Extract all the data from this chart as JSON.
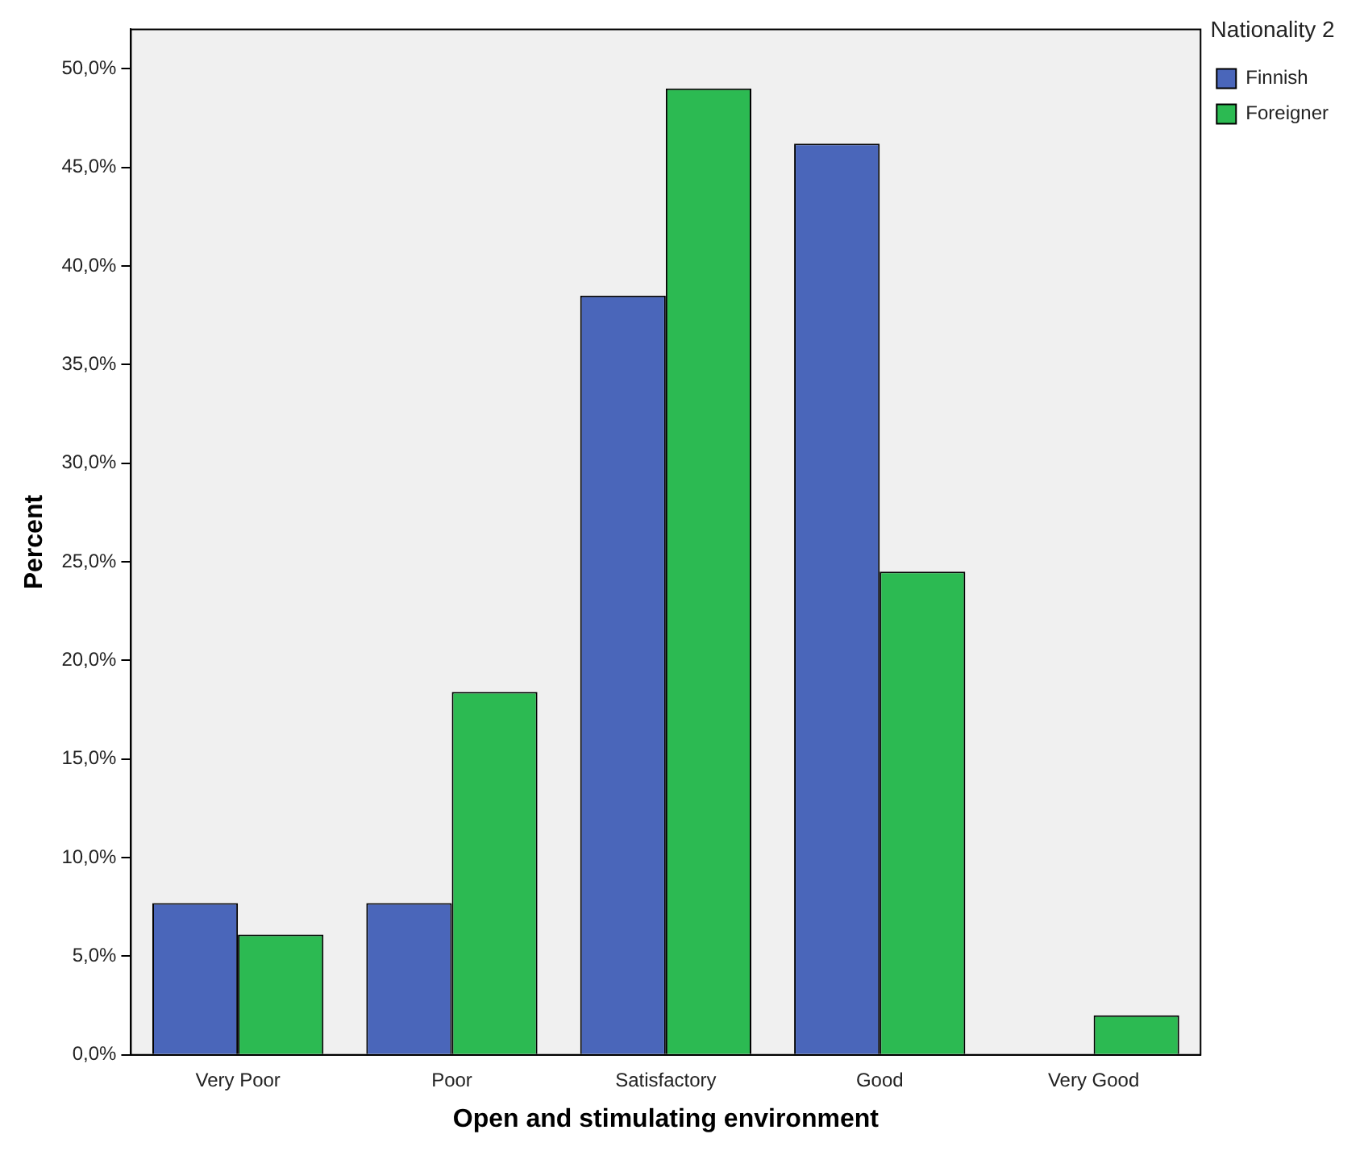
{
  "chart_data": {
    "type": "bar",
    "xlabel": "Open and stimulating environment",
    "ylabel": "Percent",
    "legend_title": "Nationality 2",
    "categories": [
      "Very Poor",
      "Poor",
      "Satisfactory",
      "Good",
      "Very Good"
    ],
    "series": [
      {
        "name": "Finnish",
        "color": "#4a66ba",
        "values": [
          7.7,
          7.7,
          38.5,
          46.2,
          0
        ]
      },
      {
        "name": "Foreigner",
        "color": "#2cba52",
        "values": [
          6.1,
          18.4,
          49.0,
          24.5,
          2.0
        ]
      }
    ],
    "ylim": [
      0,
      52
    ],
    "yticks": [
      {
        "value": 0,
        "label": "0,0%"
      },
      {
        "value": 5,
        "label": "5,0%"
      },
      {
        "value": 10,
        "label": "10,0%"
      },
      {
        "value": 15,
        "label": "15,0%"
      },
      {
        "value": 20,
        "label": "20,0%"
      },
      {
        "value": 25,
        "label": "25,0%"
      },
      {
        "value": 30,
        "label": "30,0%"
      },
      {
        "value": 35,
        "label": "35,0%"
      },
      {
        "value": 40,
        "label": "40,0%"
      },
      {
        "value": 45,
        "label": "45,0%"
      },
      {
        "value": 50,
        "label": "50,0%"
      }
    ],
    "grid": false,
    "legend": "top right"
  }
}
